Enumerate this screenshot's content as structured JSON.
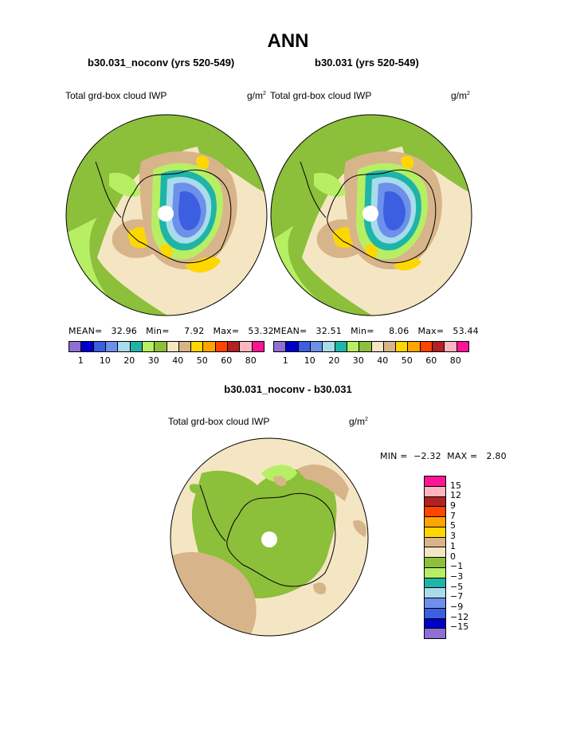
{
  "page": {
    "title": "ANN",
    "left_case": "b30.031_noconv (yrs 520-549)",
    "right_case": "b30.031 (yrs 520-549)",
    "diff_title": "b30.031_noconv - b30.031"
  },
  "panels": [
    {
      "field": "Total grd-box cloud IWP",
      "units": "g/m",
      "units_exp": "2",
      "mean_label": "MEAN=",
      "mean": "32.96",
      "min_label": "Min=",
      "min": "7.92",
      "max_label": "Max=",
      "max": "53.32"
    },
    {
      "field": "Total grd-box cloud IWP",
      "units": "g/m",
      "units_exp": "2",
      "mean_label": "MEAN=",
      "mean": "32.51",
      "min_label": "Min=",
      "min": "8.06",
      "max_label": "Max=",
      "max": "53.44"
    }
  ],
  "diff_panel": {
    "field": "Total grd-box cloud IWP",
    "units": "g/m",
    "units_exp": "2",
    "minmax_text": "MIN =  −2.32  MAX =   2.80"
  },
  "colorbar": {
    "colors": [
      "#8f6fd4",
      "#0000c8",
      "#3b5fe0",
      "#6e8fea",
      "#a8dcea",
      "#1fb4a8",
      "#b6ef64",
      "#8cbf3a",
      "#f5e6c3",
      "#d8b48a",
      "#ffd700",
      "#ffa500",
      "#ff4500",
      "#b22222",
      "#ffb6c1",
      "#ff1493"
    ],
    "tick_labels": [
      "1",
      "10",
      "20",
      "30",
      "40",
      "50",
      "60",
      "80"
    ]
  },
  "diff_colorbar": {
    "colors": [
      "#ff1493",
      "#ffb6c1",
      "#b22222",
      "#ff4500",
      "#ffa500",
      "#ffd700",
      "#d8b48a",
      "#f5e6c3",
      "#8cbf3a",
      "#b6ef64",
      "#1fb4a8",
      "#a8dcea",
      "#6e8fea",
      "#3b5fe0",
      "#0000c8",
      "#8f6fd4"
    ],
    "labels": [
      "15",
      "12",
      "9",
      "7",
      "5",
      "3",
      "1",
      "0",
      "−1",
      "−3",
      "−5",
      "−7",
      "−9",
      "−12",
      "−15"
    ]
  },
  "map_colors": {
    "green": "#8cbf3a",
    "light_green": "#b6ef64",
    "cream": "#f5e6c3",
    "tan": "#d8b48a",
    "yellow": "#ffd700",
    "teal": "#1fb4a8",
    "light_blue": "#a8dcea",
    "blue": "#6e8fea",
    "dark_blue": "#3b5fe0",
    "orange": "#ffa500"
  }
}
